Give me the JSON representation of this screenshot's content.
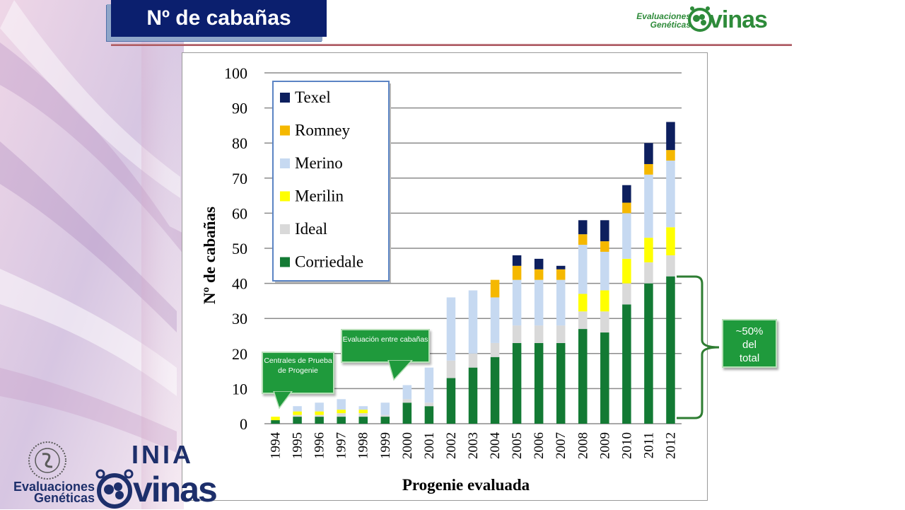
{
  "slide": {
    "title": "Nº de cabañas"
  },
  "logos": {
    "top": {
      "line1": "Evaluaciones",
      "line2": "Genéticas",
      "brand": "vinas"
    },
    "bottom": {
      "line1": "Evaluaciones",
      "line2": "Genéticas",
      "brand": "vinas",
      "inia": "INIA"
    }
  },
  "annotations": {
    "pct_line1": "~50%",
    "pct_line2": "del",
    "pct_line3": "total",
    "callout_centrales": "Centrales de Prueba de Progenie",
    "callout_evaluacion": "Evaluación entre cabañas"
  },
  "colors": {
    "Corriedale": "#137a34",
    "Ideal": "#d9d9d9",
    "Merilin": "#ffff00",
    "Merino": "#c6d9f1",
    "Romney": "#f5b800",
    "Texel": "#0d1f5e",
    "title_bg": "#0b1f6e",
    "accent_green": "#1f9a3c"
  },
  "chart_data": {
    "type": "bar",
    "stacked": true,
    "xlabel": "Progenie evaluada",
    "ylabel": "Nº de cabañas",
    "ylim": [
      0,
      100
    ],
    "yticks": [
      0,
      10,
      20,
      30,
      40,
      50,
      60,
      70,
      80,
      90,
      100
    ],
    "grid": true,
    "legend_position": "top-left",
    "categories": [
      "1994",
      "1995",
      "1996",
      "1997",
      "1998",
      "1999",
      "2000",
      "2001",
      "2002",
      "2003",
      "2004",
      "2005",
      "2006",
      "2007",
      "2008",
      "2009",
      "2010",
      "2011",
      "2012"
    ],
    "series": [
      {
        "name": "Corriedale",
        "values": [
          1,
          2,
          2,
          2,
          2,
          2,
          6,
          5,
          13,
          16,
          19,
          23,
          23,
          23,
          27,
          26,
          34,
          40,
          42
        ]
      },
      {
        "name": "Ideal",
        "values": [
          0,
          0.5,
          0.5,
          1,
          1,
          0.5,
          1,
          1,
          5,
          4,
          4,
          5,
          5,
          5,
          5,
          6,
          6,
          6,
          6
        ]
      },
      {
        "name": "Merilin",
        "values": [
          1,
          1,
          1,
          1,
          1,
          0,
          0,
          0,
          0,
          0,
          0,
          0,
          0,
          0,
          5,
          6,
          7,
          7,
          8
        ]
      },
      {
        "name": "Merino",
        "values": [
          0,
          1.5,
          2.5,
          3,
          1,
          3.5,
          4,
          10,
          18,
          18,
          13,
          13,
          13,
          13,
          14,
          11,
          13,
          18,
          19
        ]
      },
      {
        "name": "Romney",
        "values": [
          0,
          0,
          0,
          0,
          0,
          0,
          0,
          0,
          0,
          0,
          5,
          4,
          3,
          3,
          3,
          3,
          3,
          3,
          3
        ]
      },
      {
        "name": "Texel",
        "values": [
          0,
          0,
          0,
          0,
          0,
          0,
          0,
          0,
          0,
          0,
          0,
          3,
          3,
          1,
          4,
          6,
          5,
          6,
          8
        ]
      }
    ],
    "legend_order": [
      "Texel",
      "Romney",
      "Merino",
      "Merilin",
      "Ideal",
      "Corriedale"
    ]
  }
}
